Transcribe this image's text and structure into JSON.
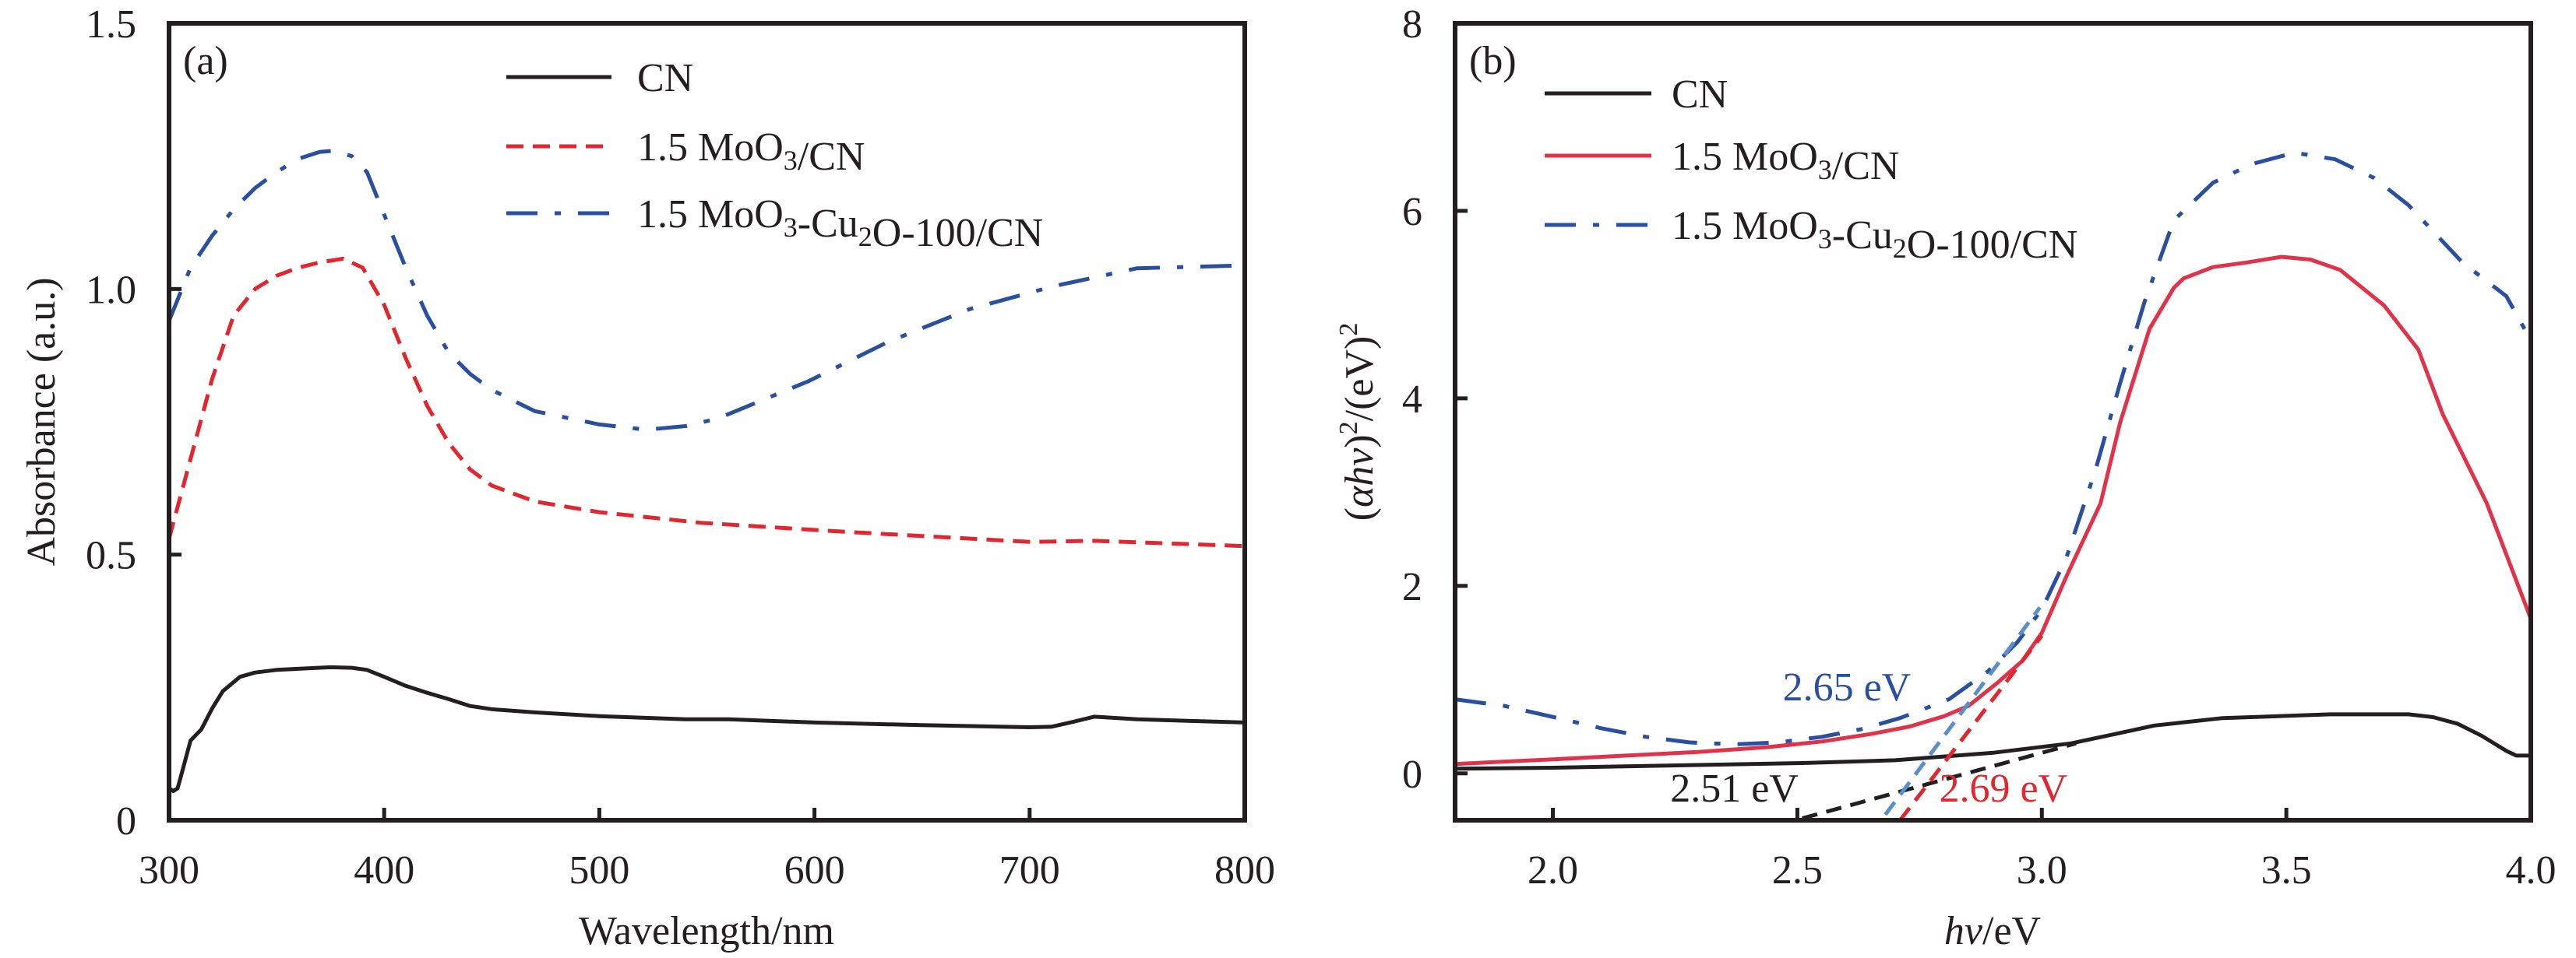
{
  "chart_data": [
    {
      "type": "line",
      "panel_label": "(a)",
      "title": "",
      "xlabel": "Wavelength/nm",
      "ylabel": "Absorbance (a.u.)",
      "xlim": [
        300,
        800
      ],
      "ylim": [
        0,
        1.5
      ],
      "xticks": [
        300,
        400,
        500,
        600,
        700,
        800
      ],
      "xtick_labels": [
        "300",
        "400",
        "500",
        "600",
        "700",
        "800"
      ],
      "yticks": [
        0,
        0.5,
        1.0,
        1.5
      ],
      "ytick_labels": [
        "0",
        "0.5",
        "1.0",
        "1.5"
      ],
      "grid": false,
      "legend_position": "top-center",
      "series": [
        {
          "name": "CN",
          "label_main": "CN",
          "color": "#231f20",
          "style": "solid",
          "x": [
            300,
            302,
            304,
            306,
            310,
            315,
            320,
            325,
            333,
            340,
            350,
            360,
            375,
            385,
            392,
            400,
            410,
            420,
            430,
            440,
            450,
            470,
            500,
            540,
            560,
            600,
            650,
            700,
            710,
            720,
            730,
            750,
            800
          ],
          "y": [
            0.06,
            0.055,
            0.06,
            0.09,
            0.15,
            0.171,
            0.21,
            0.243,
            0.27,
            0.278,
            0.283,
            0.285,
            0.288,
            0.287,
            0.283,
            0.27,
            0.253,
            0.24,
            0.228,
            0.215,
            0.209,
            0.203,
            0.196,
            0.19,
            0.19,
            0.184,
            0.179,
            0.175,
            0.176,
            0.185,
            0.195,
            0.19,
            0.184
          ]
        },
        {
          "name": "1.5 MoO3/CN",
          "label_main": "1.5 MoO",
          "label_sub1": "3",
          "label_rest1": "/CN",
          "color": "#e0262f",
          "style": "dashed",
          "x": [
            300,
            310,
            320,
            330,
            340,
            350,
            360,
            370,
            381,
            390,
            400,
            410,
            420,
            430,
            440,
            450,
            470,
            500,
            547,
            614,
            700,
            730,
            800
          ],
          "y": [
            0.53,
            0.68,
            0.83,
            0.95,
            1.0,
            1.025,
            1.04,
            1.05,
            1.057,
            1.04,
            0.97,
            0.87,
            0.78,
            0.71,
            0.66,
            0.63,
            0.6,
            0.58,
            0.56,
            0.543,
            0.524,
            0.526,
            0.516
          ]
        },
        {
          "name": "1.5 MoO3-Cu2O-100/CN",
          "label_main": "1.5 MoO",
          "label_sub1": "3",
          "label_rest1": "-Cu",
          "label_sub2": "2",
          "label_rest2": "O-100/CN",
          "color": "#2a4f9e",
          "style": "dashdot",
          "x": [
            300,
            305,
            310,
            320,
            330,
            340,
            350,
            360,
            370,
            376,
            385,
            392,
            400,
            410,
            420,
            430,
            440,
            450,
            470,
            500,
            522,
            540,
            555,
            597,
            634,
            672,
            711,
            750,
            797,
            800
          ],
          "y": [
            0.94,
            0.99,
            1.04,
            1.1,
            1.15,
            1.19,
            1.22,
            1.245,
            1.258,
            1.26,
            1.25,
            1.22,
            1.14,
            1.04,
            0.95,
            0.88,
            0.84,
            0.81,
            0.77,
            0.745,
            0.735,
            0.742,
            0.756,
            0.826,
            0.9,
            0.962,
            1.005,
            1.039,
            1.044,
            1.044
          ]
        }
      ],
      "annotations": []
    },
    {
      "type": "line",
      "panel_label": "(b)",
      "title": "",
      "xlabel_italic": "hv",
      "xlabel_rest": "/eV",
      "xlabel": "hv/eV",
      "ylabel": "(αhv)²/(eV)²",
      "ylabel_open": "(",
      "ylabel_italic": "αhv",
      "ylabel_mid": ")",
      "ylabel_sup1": "2",
      "ylabel_rest": "/(eV)",
      "ylabel_sup2": "2",
      "xlim": [
        1.8,
        4.0
      ],
      "ylim": [
        -0.5,
        8
      ],
      "xticks": [
        2.0,
        2.5,
        3.0,
        3.5,
        4.0
      ],
      "xtick_labels": [
        "2.0",
        "2.5",
        "3.0",
        "3.5",
        "4.0"
      ],
      "yticks": [
        0,
        2,
        4,
        6,
        8
      ],
      "ytick_labels": [
        "0",
        "2",
        "4",
        "6",
        "8"
      ],
      "grid": false,
      "legend_position": "top-left",
      "series": [
        {
          "name": "CN",
          "label_main": "CN",
          "color": "#231f20",
          "style": "solid",
          "x": [
            1.8,
            2.0,
            2.2,
            2.51,
            2.7,
            2.9,
            3.06,
            3.15,
            3.23,
            3.37,
            3.59,
            3.75,
            3.8,
            3.85,
            3.9,
            3.95,
            3.97,
            4.0
          ],
          "y": [
            0.05,
            0.06,
            0.08,
            0.11,
            0.14,
            0.22,
            0.32,
            0.42,
            0.51,
            0.59,
            0.63,
            0.63,
            0.6,
            0.53,
            0.4,
            0.24,
            0.19,
            0.19
          ]
        },
        {
          "name": "1.5 MoO3/CN",
          "label_main": "1.5 MoO",
          "label_sub1": "3",
          "label_rest1": "/CN",
          "color": "#e0334a",
          "style": "solid",
          "x": [
            1.8,
            2.0,
            2.15,
            2.3,
            2.44,
            2.55,
            2.65,
            2.73,
            2.8,
            2.85,
            2.91,
            2.96,
            3.0,
            3.05,
            3.12,
            3.16,
            3.22,
            3.27,
            3.29,
            3.35,
            3.42,
            3.49,
            3.55,
            3.61,
            3.7,
            3.77,
            3.82,
            3.91,
            4.0
          ],
          "y": [
            0.1,
            0.15,
            0.19,
            0.23,
            0.28,
            0.34,
            0.42,
            0.5,
            0.61,
            0.72,
            0.97,
            1.2,
            1.5,
            2.1,
            2.88,
            3.74,
            4.74,
            5.18,
            5.28,
            5.4,
            5.45,
            5.51,
            5.48,
            5.37,
            4.99,
            4.52,
            3.83,
            2.88,
            1.65
          ]
        },
        {
          "name": "1.5 MoO3-Cu2O-100/CN",
          "label_main": "1.5 MoO",
          "label_sub1": "3",
          "label_rest1": "-Cu",
          "label_sub2": "2",
          "label_rest2": "O-100/CN",
          "color": "#2a4f9e",
          "style": "dashdot",
          "x": [
            1.8,
            1.9,
            2.01,
            2.1,
            2.19,
            2.28,
            2.37,
            2.46,
            2.55,
            2.63,
            2.71,
            2.81,
            2.89,
            2.95,
            3.0,
            3.05,
            3.11,
            3.16,
            3.21,
            3.27,
            3.35,
            3.43,
            3.517,
            3.6,
            3.68,
            3.75,
            3.86,
            3.95,
            4.0
          ],
          "y": [
            0.79,
            0.72,
            0.59,
            0.48,
            0.39,
            0.33,
            0.31,
            0.33,
            0.39,
            0.47,
            0.59,
            0.79,
            1.09,
            1.4,
            1.75,
            2.3,
            3.24,
            4.16,
            5.03,
            5.9,
            6.3,
            6.5,
            6.62,
            6.55,
            6.35,
            6.06,
            5.45,
            5.09,
            4.62
          ]
        }
      ],
      "tangent_lines": [
        {
          "name": "CN tangent",
          "color": "#231f20",
          "style": "dashed",
          "x": [
            2.51,
            3.07
          ],
          "y": [
            -0.48,
            0.32
          ]
        },
        {
          "name": "1.5 MoO3/CN tangent",
          "color": "#e0262f",
          "style": "dashed",
          "x": [
            2.71,
            3.0
          ],
          "y": [
            -0.5,
            1.47
          ]
        },
        {
          "name": "1.5 MoO3-Cu2O-100/CN tangent",
          "color": "#5b8fc7",
          "style": "dashed",
          "x": [
            2.68,
            2.996
          ],
          "y": [
            -0.44,
            1.77
          ]
        }
      ],
      "annotations": [
        {
          "text": "2.65 eV",
          "color": "#2a4f9e",
          "x": 2.47,
          "y": 0.78
        },
        {
          "text": "2.51 eV",
          "color": "#231f20",
          "x": 2.24,
          "y": -0.3
        },
        {
          "text": "2.69 eV",
          "color": "#e0262f",
          "x": 2.79,
          "y": -0.3
        }
      ]
    }
  ]
}
